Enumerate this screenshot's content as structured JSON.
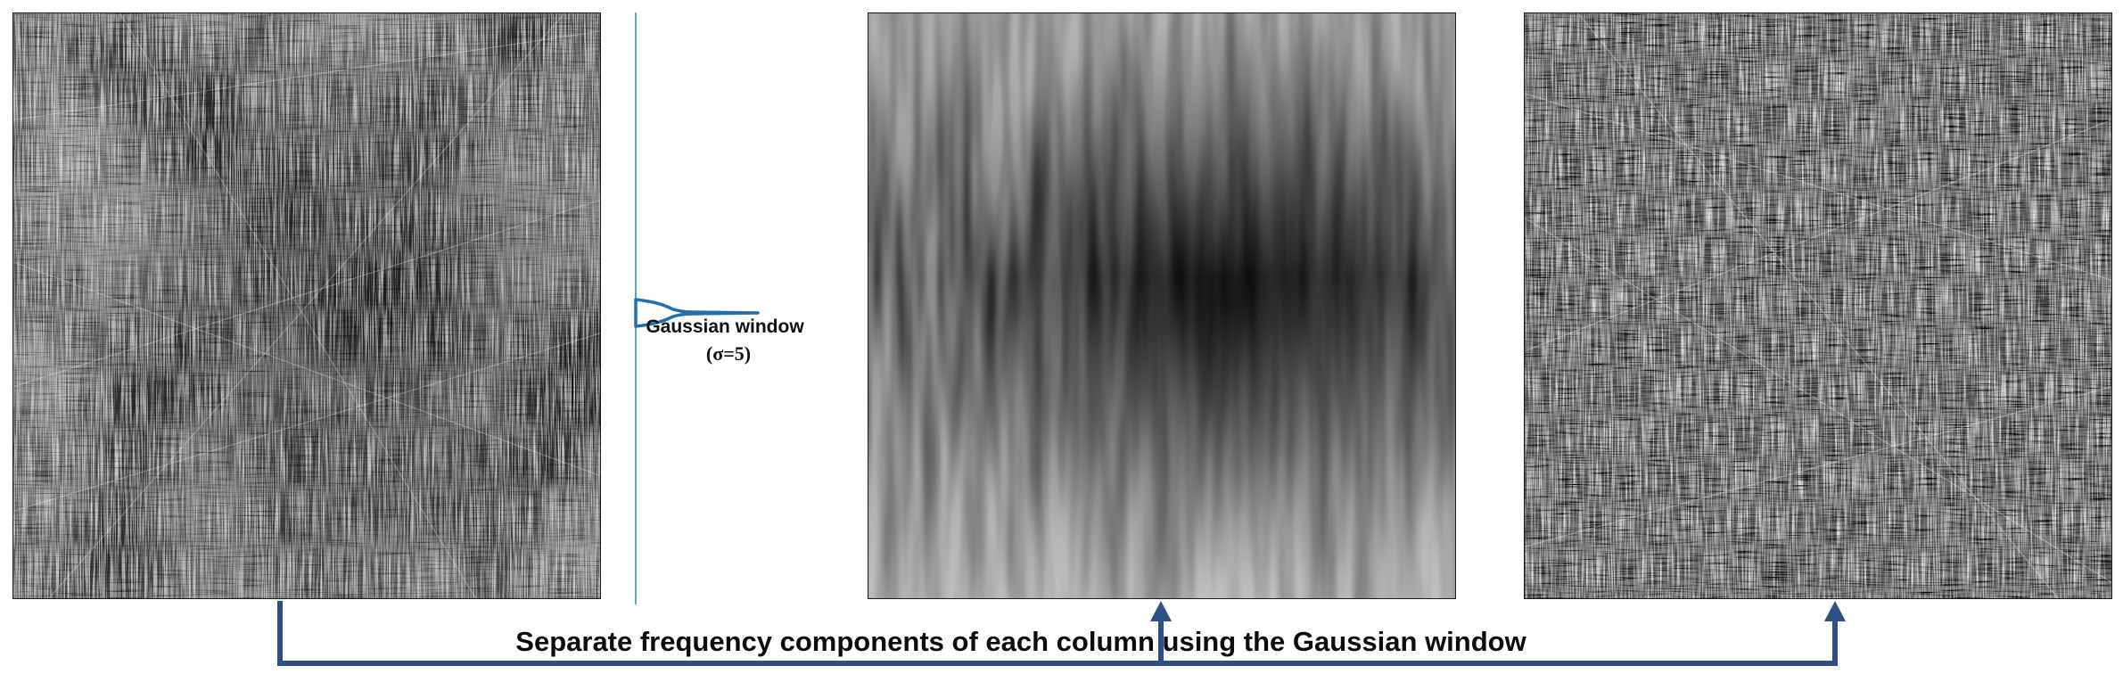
{
  "gaussian": {
    "label": "Gaussian window",
    "sigma": "(σ=5)"
  },
  "caption": "Separate frequency components of each column using the Gaussian window",
  "colors": {
    "arrow": "#2f4f86",
    "gaussian_axis": "#5aa7d6",
    "gaussian_curve": "#1f6fb2",
    "panel_border": "#1a1a1a"
  },
  "panels": {
    "original": "input-texture-image",
    "low": "low-frequency-component-image",
    "high": "high-frequency-component-image"
  }
}
